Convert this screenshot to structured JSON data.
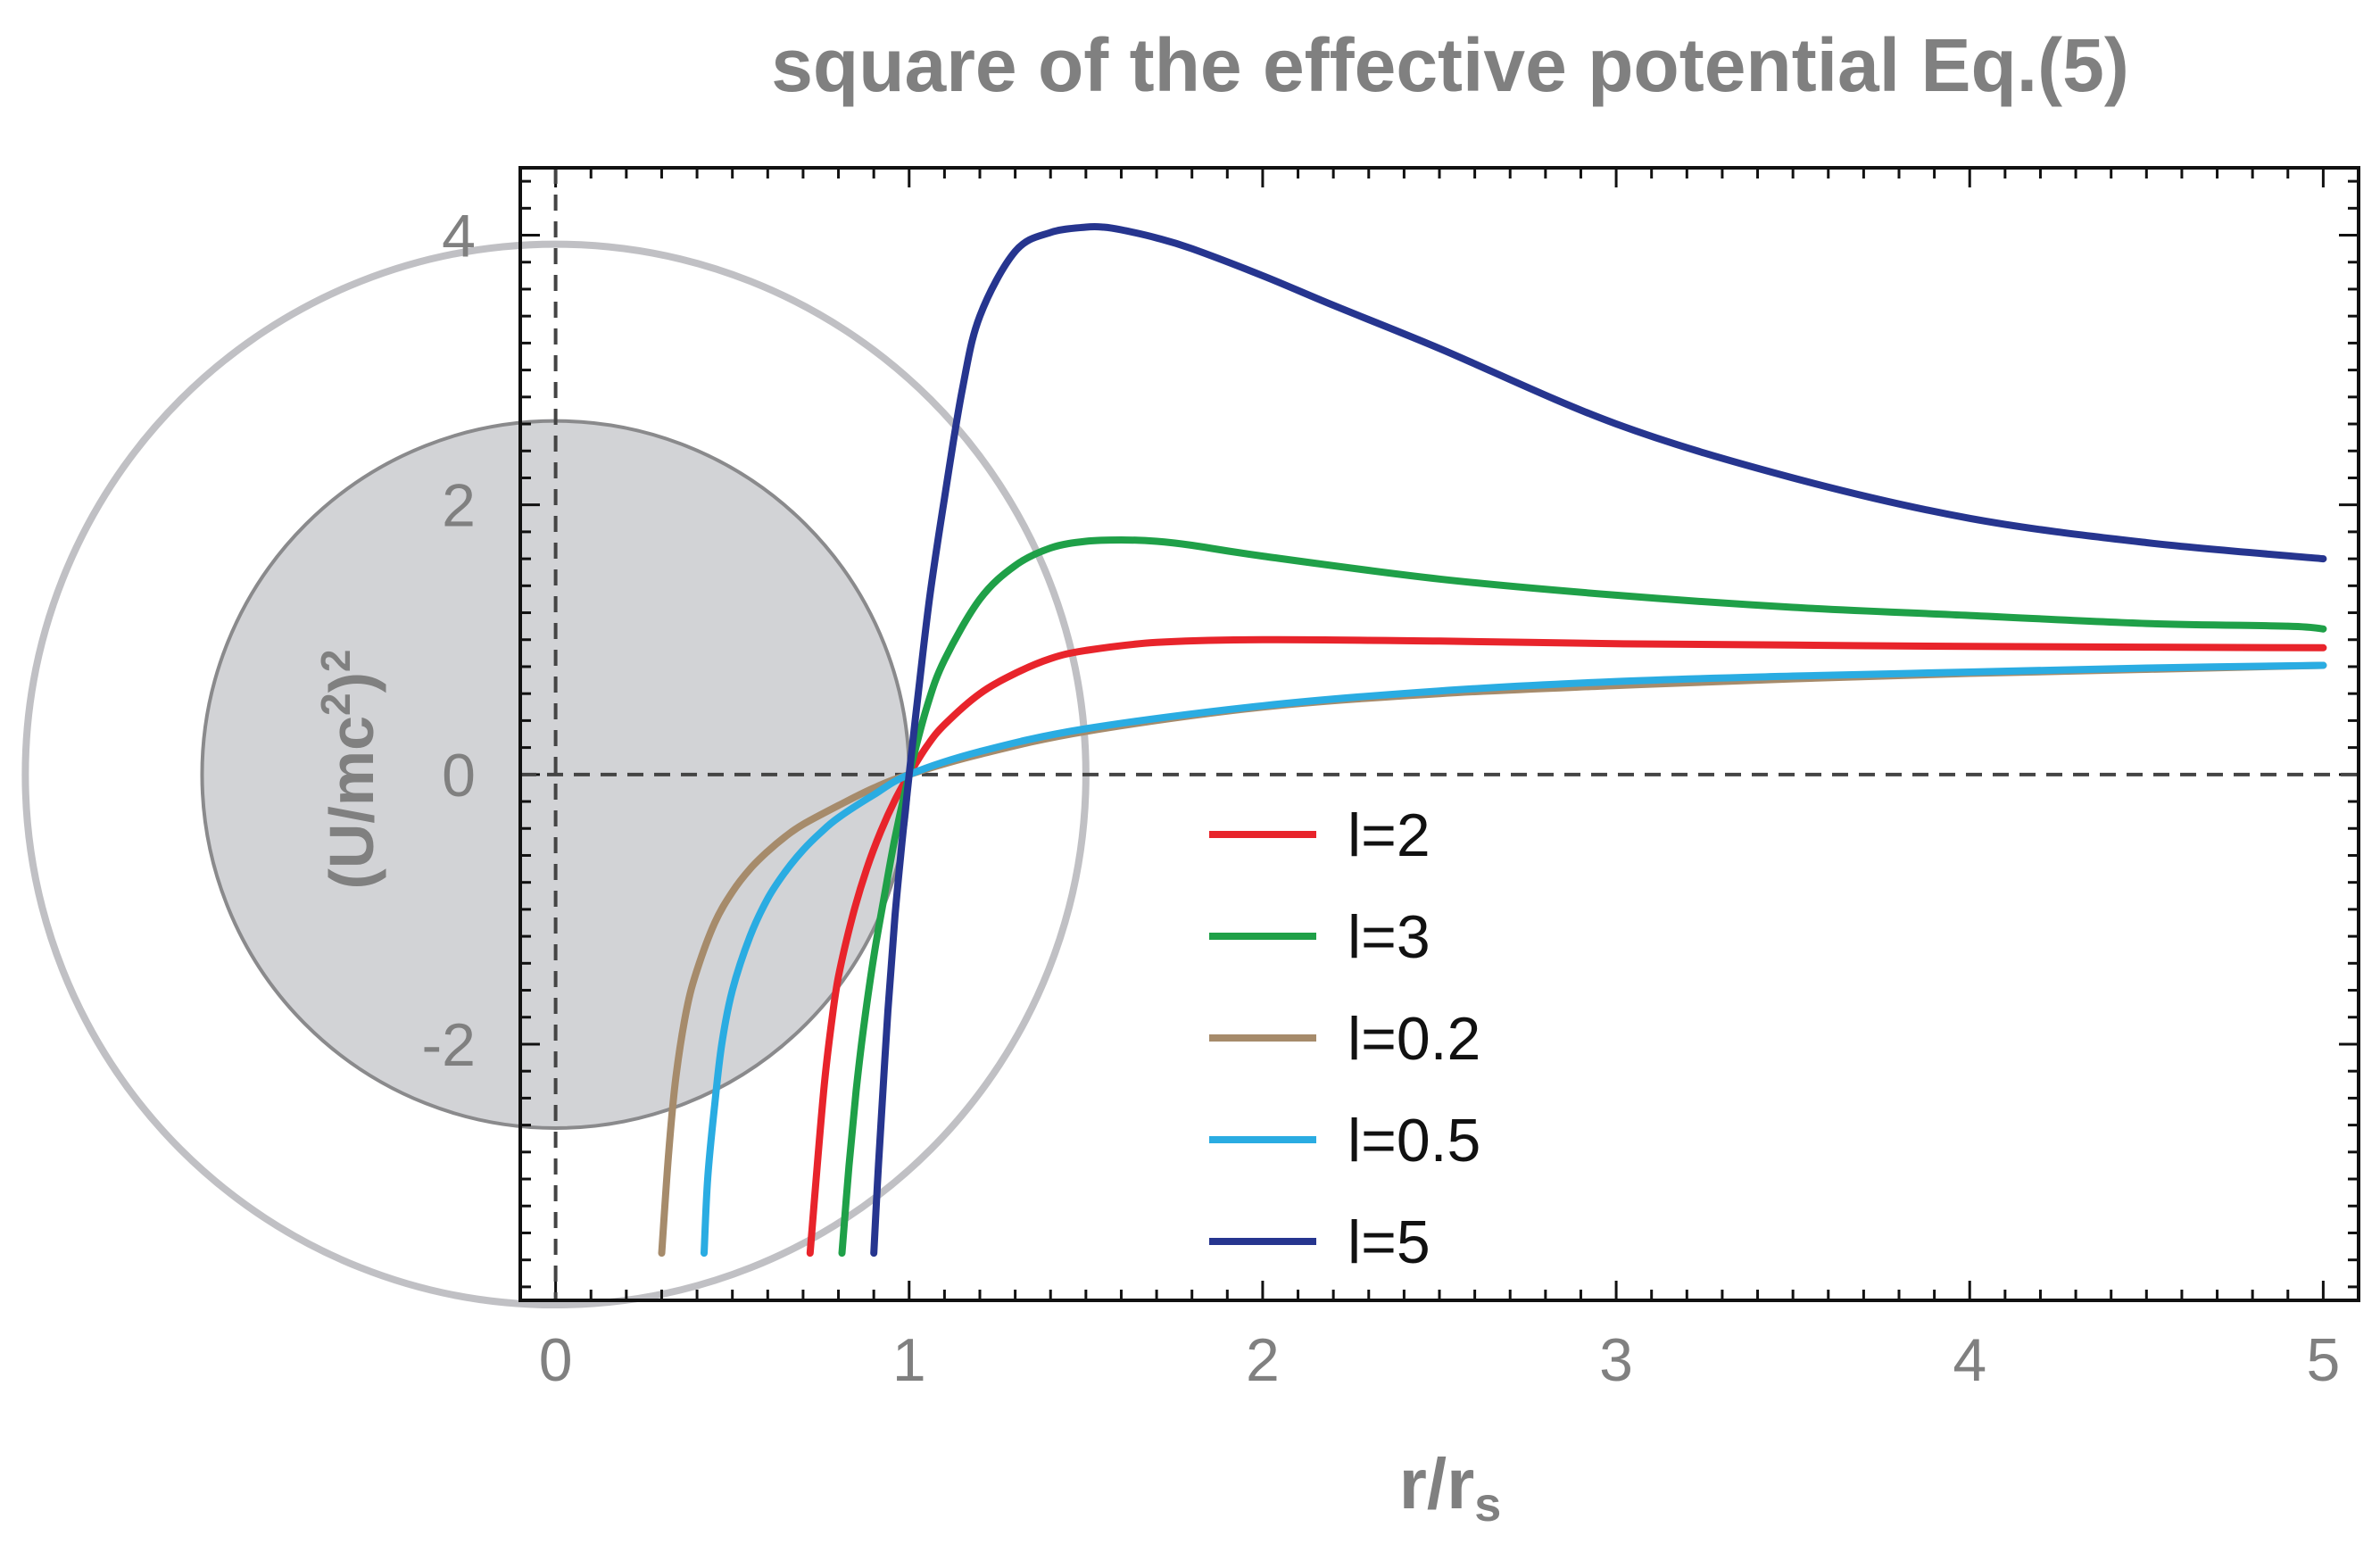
{
  "chart_data": {
    "type": "line",
    "title": "square of the effective potential Eq.(5)",
    "xlabel": {
      "main": "r/r",
      "sub": "s"
    },
    "ylabel": {
      "prefix": "(U/mc",
      "sup": "2",
      "close": ")",
      "sup2": "2"
    },
    "xlim": [
      -0.1,
      5.1
    ],
    "ylim": [
      -3.9,
      4.5
    ],
    "x_ticks": [
      0,
      1,
      2,
      3,
      4,
      5
    ],
    "x_tick_labels": [
      "0",
      "1",
      "2",
      "3",
      "4",
      "5"
    ],
    "y_ticks": [
      -2,
      0,
      2,
      4
    ],
    "y_tick_labels": [
      "-2",
      "0",
      "2",
      "4"
    ],
    "grid": false,
    "reference_lines": {
      "x": 0,
      "y": 0,
      "style": "dashed"
    },
    "legend_position": "lower-center",
    "decorations": {
      "outer_circle": {
        "cx": 0,
        "cy": 0,
        "radius_x": 1.5,
        "color": "#c0c0c4"
      },
      "inner_circle": {
        "cx": 0,
        "cy": 0,
        "radius_x": 1.0,
        "fill": "#d2d3d6",
        "stroke": "#8a8a8c"
      }
    },
    "series": [
      {
        "name": "l=2",
        "color": "#e8242b",
        "x": [
          0.72,
          0.74,
          0.76,
          0.78,
          0.8,
          0.84,
          0.88,
          0.92,
          0.96,
          1.0,
          1.05,
          1.1,
          1.2,
          1.3,
          1.4,
          1.5,
          1.7,
          2.0,
          2.5,
          3.0,
          3.5,
          4.0,
          4.5,
          5.0
        ],
        "y": [
          -3.55,
          -2.9,
          -2.3,
          -1.85,
          -1.5,
          -1.05,
          -0.7,
          -0.42,
          -0.19,
          0.0,
          0.21,
          0.37,
          0.6,
          0.75,
          0.86,
          0.92,
          0.98,
          1.0,
          0.99,
          0.97,
          0.96,
          0.95,
          0.945,
          0.94
        ]
      },
      {
        "name": "l=3",
        "color": "#1fa048",
        "x": [
          0.81,
          0.83,
          0.85,
          0.87,
          0.9,
          0.93,
          0.96,
          1.0,
          1.05,
          1.1,
          1.2,
          1.3,
          1.4,
          1.5,
          1.6,
          1.7,
          1.8,
          2.0,
          2.5,
          3.0,
          3.5,
          4.0,
          4.5,
          4.9,
          5.0
        ],
        "y": [
          -3.55,
          -2.9,
          -2.35,
          -1.9,
          -1.35,
          -0.9,
          -0.47,
          0.0,
          0.5,
          0.85,
          1.3,
          1.55,
          1.68,
          1.73,
          1.74,
          1.73,
          1.7,
          1.62,
          1.45,
          1.33,
          1.24,
          1.18,
          1.12,
          1.1,
          1.08
        ]
      },
      {
        "name": "l=0.2",
        "color": "#a68b6b",
        "x": [
          0.3,
          0.32,
          0.34,
          0.37,
          0.4,
          0.45,
          0.5,
          0.55,
          0.6,
          0.65,
          0.7,
          0.8,
          0.9,
          1.0,
          1.2,
          1.5,
          2.0,
          2.5,
          3.0,
          3.5,
          4.0,
          4.5,
          5.0
        ],
        "y": [
          -3.55,
          -2.8,
          -2.25,
          -1.75,
          -1.45,
          -1.1,
          -0.87,
          -0.7,
          -0.57,
          -0.46,
          -0.37,
          -0.23,
          -0.1,
          0.0,
          0.15,
          0.32,
          0.5,
          0.6,
          0.66,
          0.71,
          0.75,
          0.78,
          0.81
        ]
      },
      {
        "name": "l=0.5",
        "color": "#2aace2",
        "x": [
          0.42,
          0.43,
          0.45,
          0.47,
          0.5,
          0.55,
          0.6,
          0.65,
          0.7,
          0.75,
          0.8,
          0.9,
          1.0,
          1.2,
          1.5,
          2.0,
          2.5,
          3.0,
          3.5,
          4.0,
          4.5,
          5.0
        ],
        "y": [
          -3.55,
          -3.0,
          -2.45,
          -2.0,
          -1.6,
          -1.2,
          -0.92,
          -0.72,
          -0.56,
          -0.43,
          -0.32,
          -0.15,
          0.0,
          0.17,
          0.34,
          0.51,
          0.62,
          0.69,
          0.73,
          0.76,
          0.79,
          0.81
        ]
      },
      {
        "name": "l=5",
        "color": "#26358f",
        "x": [
          0.9,
          0.91,
          0.92,
          0.94,
          0.96,
          0.98,
          1.0,
          1.03,
          1.06,
          1.1,
          1.15,
          1.2,
          1.3,
          1.4,
          1.5,
          1.55,
          1.6,
          1.7,
          1.8,
          2.0,
          2.2,
          2.5,
          3.0,
          3.5,
          4.0,
          4.5,
          5.0
        ],
        "y": [
          -3.55,
          -3.05,
          -2.6,
          -1.75,
          -1.05,
          -0.5,
          0.0,
          0.7,
          1.35,
          2.05,
          2.85,
          3.4,
          3.88,
          4.02,
          4.06,
          4.06,
          4.04,
          3.98,
          3.9,
          3.7,
          3.48,
          3.16,
          2.6,
          2.2,
          1.9,
          1.72,
          1.6
        ]
      }
    ]
  }
}
